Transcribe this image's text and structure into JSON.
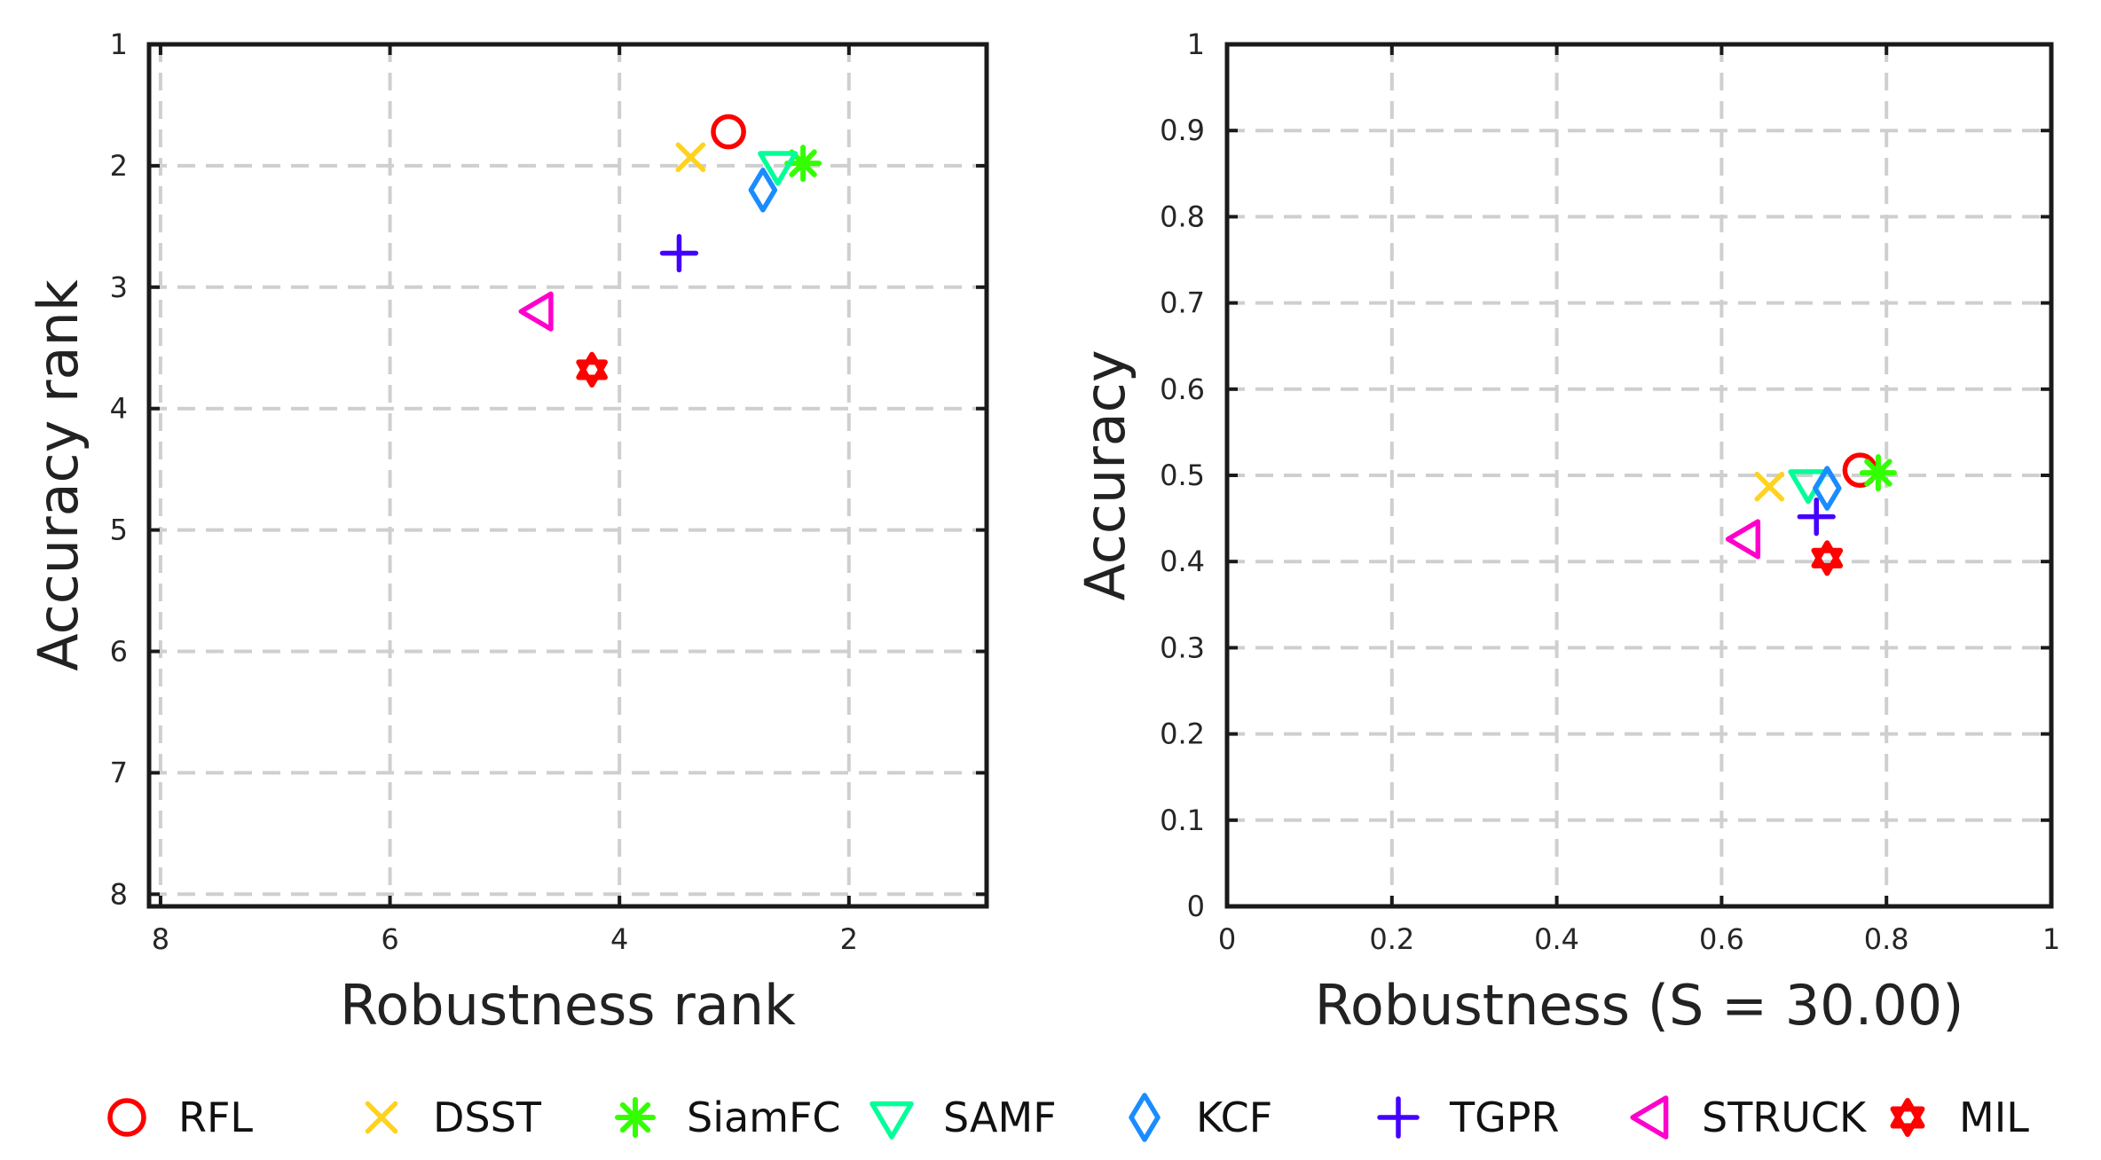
{
  "chart_data": [
    {
      "type": "scatter",
      "title": "",
      "xlabel": "Robustness rank",
      "ylabel": "Accuracy rank",
      "xlim": [
        8.1,
        0.8
      ],
      "ylim": [
        1,
        8.1
      ],
      "x_reversed": true,
      "y_reversed": true,
      "xticks": [
        8,
        6,
        4,
        2
      ],
      "xtick_labels": [
        "8",
        "6",
        "4",
        "2"
      ],
      "yticks": [
        1,
        2,
        3,
        4,
        5,
        6,
        7,
        8
      ],
      "ytick_labels": [
        "1",
        "2",
        "3",
        "4",
        "5",
        "6",
        "7",
        "8"
      ],
      "grid": true,
      "series": [
        {
          "name": "RFL",
          "x": 3.05,
          "y": 1.72
        },
        {
          "name": "DSST",
          "x": 3.38,
          "y": 1.93
        },
        {
          "name": "SiamFC",
          "x": 2.4,
          "y": 1.98
        },
        {
          "name": "SAMF",
          "x": 2.62,
          "y": 2.0
        },
        {
          "name": "KCF",
          "x": 2.75,
          "y": 2.2
        },
        {
          "name": "TGPR",
          "x": 3.48,
          "y": 2.72
        },
        {
          "name": "STRUCK",
          "x": 4.72,
          "y": 3.2
        },
        {
          "name": "MIL",
          "x": 4.24,
          "y": 3.68
        }
      ]
    },
    {
      "type": "scatter",
      "title": "",
      "xlabel": "Robustness (S = 30.00)",
      "ylabel": "Accuracy",
      "xlim": [
        0,
        1
      ],
      "ylim": [
        0,
        1
      ],
      "xticks": [
        0,
        0.2,
        0.4,
        0.6,
        0.8,
        1
      ],
      "xtick_labels": [
        "0",
        "0.2",
        "0.4",
        "0.6",
        "0.8",
        "1"
      ],
      "yticks": [
        0,
        0.1,
        0.2,
        0.3,
        0.4,
        0.5,
        0.6,
        0.7,
        0.8,
        0.9,
        1
      ],
      "ytick_labels": [
        "0",
        "0.1",
        "0.2",
        "0.3",
        "0.4",
        "0.5",
        "0.6",
        "0.7",
        "0.8",
        "0.9",
        "1"
      ],
      "grid": true,
      "series": [
        {
          "name": "RFL",
          "x": 0.768,
          "y": 0.506
        },
        {
          "name": "DSST",
          "x": 0.658,
          "y": 0.487
        },
        {
          "name": "SiamFC",
          "x": 0.79,
          "y": 0.503
        },
        {
          "name": "SAMF",
          "x": 0.705,
          "y": 0.49
        },
        {
          "name": "KCF",
          "x": 0.728,
          "y": 0.485
        },
        {
          "name": "TGPR",
          "x": 0.715,
          "y": 0.452
        },
        {
          "name": "STRUCK",
          "x": 0.627,
          "y": 0.426
        },
        {
          "name": "MIL",
          "x": 0.728,
          "y": 0.404
        }
      ]
    }
  ],
  "legend": {
    "placement": "bottom",
    "entries": [
      {
        "name": "RFL",
        "marker": "circle",
        "color": "#ff0000"
      },
      {
        "name": "DSST",
        "marker": "x",
        "color": "#ffd21f"
      },
      {
        "name": "SiamFC",
        "marker": "asterisk",
        "color": "#33ff00"
      },
      {
        "name": "SAMF",
        "marker": "triangle-down",
        "color": "#00ff99"
      },
      {
        "name": "KCF",
        "marker": "diamond",
        "color": "#1a8cff"
      },
      {
        "name": "TGPR",
        "marker": "plus",
        "color": "#4400ff"
      },
      {
        "name": "STRUCK",
        "marker": "triangle-left",
        "color": "#ff00cc"
      },
      {
        "name": "MIL",
        "marker": "hexagram",
        "color": "#ff0000"
      }
    ]
  }
}
